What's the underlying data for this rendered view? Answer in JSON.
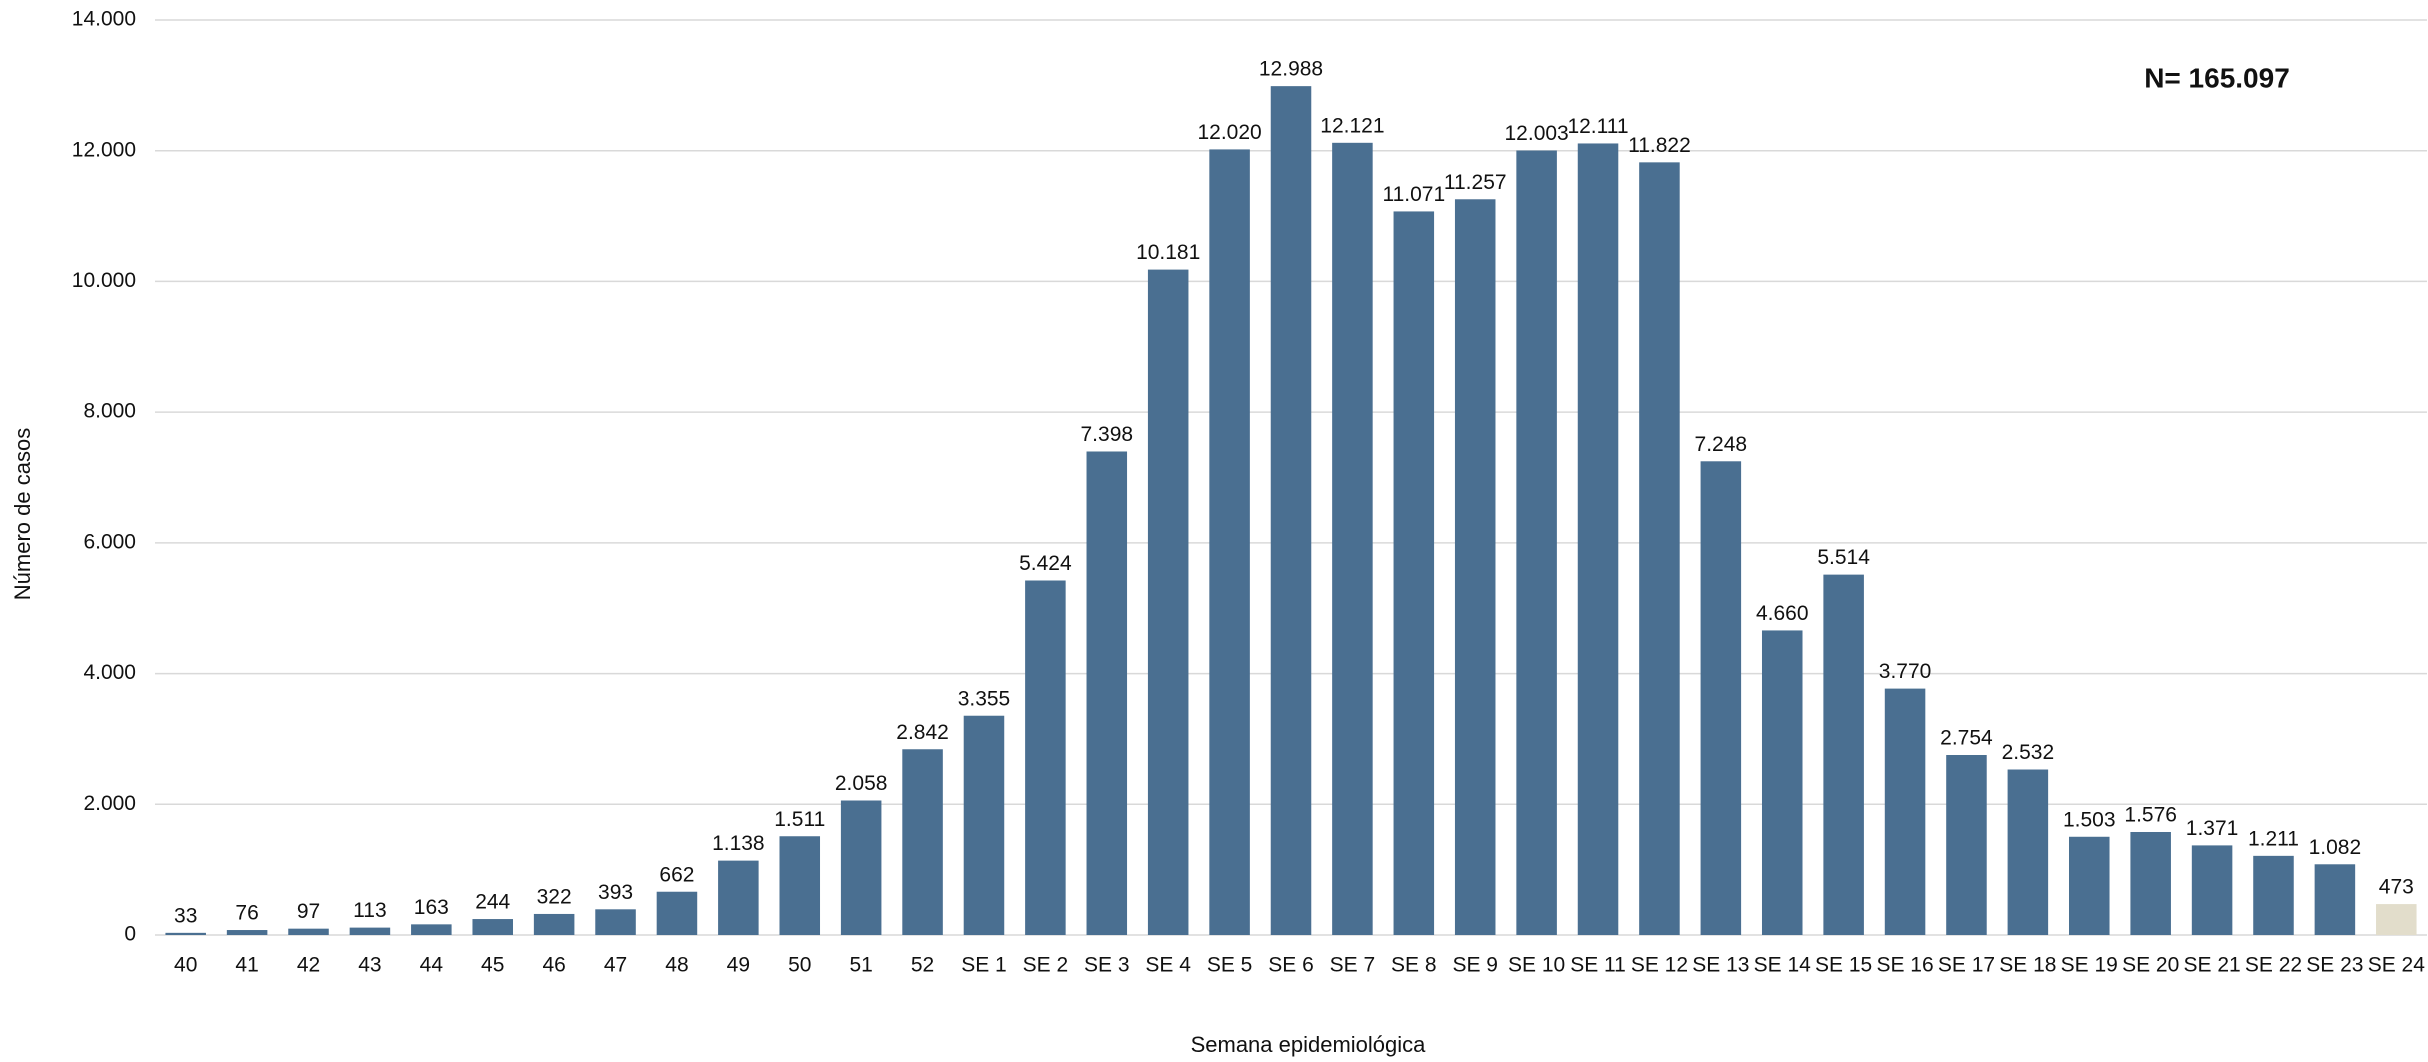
{
  "chart_data": {
    "type": "bar",
    "annotation": "N= 165.097",
    "x_label": "Semana epidemiológica",
    "y_label": "Número de casos",
    "categories": [
      "40",
      "41",
      "42",
      "43",
      "44",
      "45",
      "46",
      "47",
      "48",
      "49",
      "50",
      "51",
      "52",
      "SE 1",
      "SE 2",
      "SE 3",
      "SE 4",
      "SE 5",
      "SE 6",
      "SE 7",
      "SE 8",
      "SE 9",
      "SE 10",
      "SE 11",
      "SE 12",
      "SE 13",
      "SE 14",
      "SE 15",
      "SE 16",
      "SE 17",
      "SE 18",
      "SE 19",
      "SE 20",
      "SE 21",
      "SE 22",
      "SE 23",
      "SE 24"
    ],
    "values": [
      33,
      76,
      97,
      113,
      163,
      244,
      322,
      393,
      662,
      1138,
      1511,
      2058,
      2842,
      3355,
      5424,
      7398,
      10181,
      12020,
      12988,
      12121,
      11071,
      11257,
      12003,
      12111,
      11822,
      7248,
      4660,
      5514,
      3770,
      2754,
      2532,
      1503,
      1576,
      1371,
      1211,
      1082,
      473
    ],
    "value_labels": [
      "33",
      "76",
      "97",
      "113",
      "163",
      "244",
      "322",
      "393",
      "662",
      "1.138",
      "1.511",
      "2.058",
      "2.842",
      "3.355",
      "5.424",
      "7.398",
      "10.181",
      "12.020",
      "12.988",
      "12.121",
      "11.071",
      "11.257",
      "12.003",
      "12.111",
      "11.822",
      "7.248",
      "4.660",
      "5.514",
      "3.770",
      "2.754",
      "2.532",
      "1.503",
      "1.576",
      "1.371",
      "1.211",
      "1.082",
      "473"
    ],
    "colors": [
      "#4a6f91",
      "#4a6f91",
      "#4a6f91",
      "#4a6f91",
      "#4a6f91",
      "#4a6f91",
      "#4a6f91",
      "#4a6f91",
      "#4a6f91",
      "#4a6f91",
      "#4a6f91",
      "#4a6f91",
      "#4a6f91",
      "#4a6f91",
      "#4a6f91",
      "#4a6f91",
      "#4a6f91",
      "#4a6f91",
      "#4a6f91",
      "#4a6f91",
      "#4a6f91",
      "#4a6f91",
      "#4a6f91",
      "#4a6f91",
      "#4a6f91",
      "#4a6f91",
      "#4a6f91",
      "#4a6f91",
      "#4a6f91",
      "#4a6f91",
      "#4a6f91",
      "#4a6f91",
      "#4a6f91",
      "#4a6f91",
      "#4a6f91",
      "#4a6f91",
      "#e2ddcb"
    ],
    "ylim": [
      0,
      14000
    ],
    "yticks": [
      0,
      {
        "value": 2000,
        "label": "2.000"
      },
      {
        "value": 4000,
        "label": "4.000"
      },
      {
        "value": 6000,
        "label": "6.000"
      },
      {
        "value": 8000,
        "label": "8.000"
      },
      {
        "value": 10000,
        "label": "10.000"
      },
      {
        "value": 12000,
        "label": "12.000"
      },
      {
        "value": 14000,
        "label": "14.000"
      }
    ],
    "grid": true
  }
}
